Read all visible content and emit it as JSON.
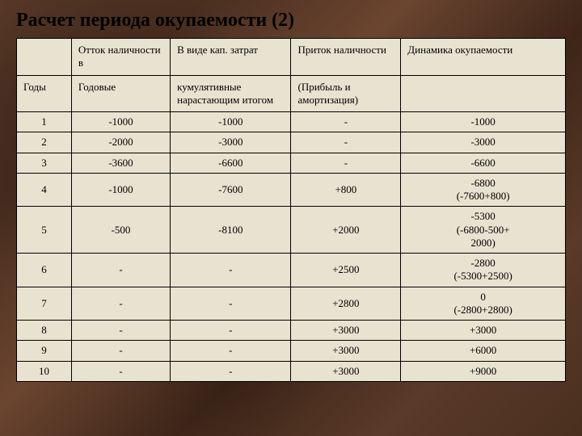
{
  "title": "Расчет периода окупаемости (2)",
  "header1": {
    "c0": "",
    "c1": "Отток наличности в",
    "c2": "В виде кап. затрат",
    "c3": "Приток наличности",
    "c4": "Динамика окупаемости"
  },
  "header2": {
    "c0": "Годы",
    "c1": "Годовые",
    "c2": "кумулятивные нарастающим итогом",
    "c3": "(Прибыль и амортизация)",
    "c4": ""
  },
  "rows": [
    {
      "year": "1",
      "a": "-1000",
      "b": "-1000",
      "c": "-",
      "d": "-1000"
    },
    {
      "year": "2",
      "a": "-2000",
      "b": "-3000",
      "c": "-",
      "d": "-3000"
    },
    {
      "year": "3",
      "a": "-3600",
      "b": "-6600",
      "c": "-",
      "d": "-6600"
    },
    {
      "year": "4",
      "a": "-1000",
      "b": "-7600",
      "c": "+800",
      "d": "-6800\n(-7600+800)"
    },
    {
      "year": "5",
      "a": "-500",
      "b": "-8100",
      "c": "+2000",
      "d": "-5300\n(-6800-500+\n2000)"
    },
    {
      "year": "6",
      "a": "-",
      "b": "-",
      "c": "+2500",
      "d": "-2800\n(-5300+2500)"
    },
    {
      "year": "7",
      "a": "-",
      "b": "-",
      "c": "+2800",
      "d": "0\n(-2800+2800)"
    },
    {
      "year": "8",
      "a": "-",
      "b": "-",
      "c": "+3000",
      "d": "+3000"
    },
    {
      "year": "9",
      "a": "-",
      "b": "-",
      "c": "+3000",
      "d": "+6000"
    },
    {
      "year": "10",
      "a": "-",
      "b": "-",
      "c": "+3000",
      "d": "+9000"
    }
  ],
  "styling": {
    "background_texture": "brown-grunge",
    "table_bg": "#e8e2d0",
    "border_color": "#000000",
    "title_fontsize": 24,
    "cell_fontsize": 13,
    "font_family": "Times New Roman"
  }
}
